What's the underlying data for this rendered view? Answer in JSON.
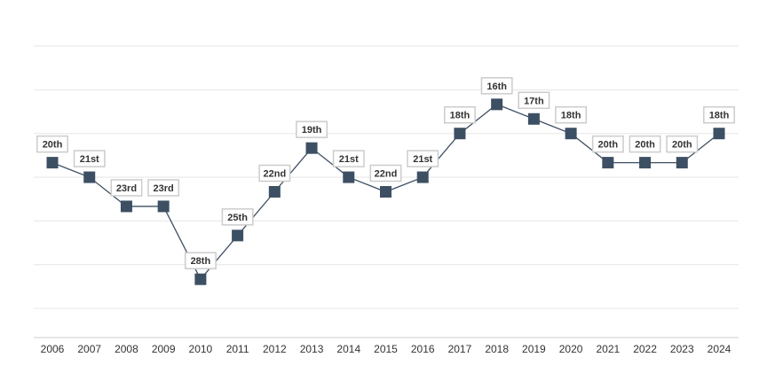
{
  "chart_data": {
    "type": "line",
    "title": "",
    "xlabel": "",
    "ylabel": "",
    "categories": [
      "2006",
      "2007",
      "2008",
      "2009",
      "2010",
      "2011",
      "2012",
      "2013",
      "2014",
      "2015",
      "2016",
      "2017",
      "2018",
      "2019",
      "2020",
      "2021",
      "2022",
      "2023",
      "2024"
    ],
    "series": [
      {
        "values": [
          20,
          21,
          23,
          23,
          28,
          25,
          22,
          19,
          21,
          22,
          21,
          18,
          16,
          17,
          18,
          20,
          20,
          20,
          18
        ],
        "labels": [
          "20th",
          "21st",
          "23rd",
          "23rd",
          "28th",
          "25th",
          "22nd",
          "19th",
          "21st",
          "22nd",
          "21st",
          "18th",
          "16th",
          "17th",
          "18th",
          "20th",
          "20th",
          "20th",
          "18th"
        ]
      }
    ],
    "ylim": [
      12,
      32
    ],
    "y_inverted": true,
    "grid": true,
    "legend": "none",
    "colors": {
      "series": "#3d4f63",
      "grid": "#e6e6e6",
      "label_border": "#cccccc",
      "text": "#333333"
    }
  }
}
